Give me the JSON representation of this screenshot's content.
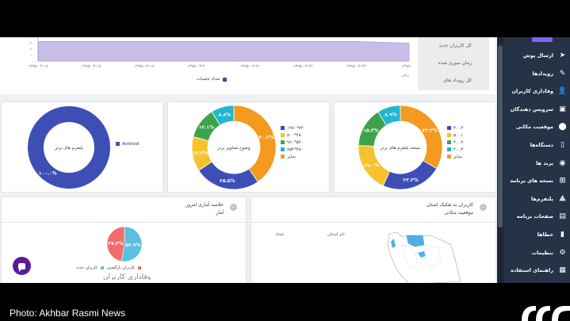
{
  "sidebar": {
    "items": [
      {
        "label": "ارسال پوش",
        "icon": "send-icon",
        "glyph": "➤"
      },
      {
        "label": "رویدادها",
        "icon": "magic-wand-icon",
        "glyph": "✎"
      },
      {
        "label": "وفاداری کاربران",
        "icon": "user-icon",
        "glyph": "👤"
      },
      {
        "label": "سرویس دهندگان",
        "icon": "server-icon",
        "glyph": "▣"
      },
      {
        "label": "موقعیت مکانی",
        "icon": "location-pin-icon",
        "glyph": "⬤"
      },
      {
        "label": "دستگاه‌ها",
        "icon": "phone-icon",
        "glyph": "▯"
      },
      {
        "label": "برند ها",
        "icon": "brand-icon",
        "glyph": "◉"
      },
      {
        "label": "نسخه های برنامه",
        "icon": "versions-icon",
        "glyph": "⊞"
      },
      {
        "label": "پلتفرم‌ها",
        "icon": "platforms-icon",
        "glyph": "⟁"
      },
      {
        "label": "صفحات برنامه",
        "icon": "pages-icon",
        "glyph": "▤"
      },
      {
        "label": "خطاها",
        "icon": "error-icon",
        "glyph": "▮"
      },
      {
        "label": "تنظیمات",
        "icon": "gear-icon",
        "glyph": "⚙"
      },
      {
        "label": "راهنمای استفاده",
        "icon": "guide-icon",
        "glyph": "▦"
      }
    ]
  },
  "top": {
    "x_ticks": [
      "۱۳۹۵-۰۳-۱۷",
      "۱۳۹۵-۰۳-۱۸",
      "۱۳۹۵-۰۳-۱۹",
      "۱۳۹۵-۰۳-۲۰",
      "۱۳۹۵-۰۳-۲۱",
      "۱۳۹۵-۰۳-۲۲",
      "۱۳۹۵-۰۳-۲۳",
      "۱۳۹۵-۰۳-"
    ],
    "y_ticks": [
      "۴۰۰",
      "۳۰۰",
      "۲۰۰",
      "۱۰۰",
      "۰"
    ],
    "y_values": [
      400,
      300,
      200,
      100,
      0
    ],
    "area_values": [
      330,
      330,
      330,
      330,
      330,
      330,
      330,
      300
    ],
    "xlabel_fragment": "زمان",
    "legend": "تعداد جلسات",
    "series_color": "#5c3aa8",
    "kpis": [
      "کل کاربران جدید",
      "زمان سپری شده",
      "کل رویداد های"
    ]
  },
  "donut_platforms": {
    "center": "پلتفرم های برتر",
    "legend": [
      {
        "label": "Android",
        "color": "#3d4fb5"
      }
    ],
    "slices": [
      {
        "value": 100,
        "label": "۱۰۰.۰%",
        "color": "#3d4fb5"
      }
    ]
  },
  "donut_resolutions": {
    "center": "وضوح تصاویر برتر",
    "legend": [
      {
        "label": "۱۲۸۰*۷۲۰",
        "color": "#3d4fb5"
      },
      {
        "label": "۸۰۰*۴۸۰",
        "color": "#f7c22d"
      },
      {
        "label": "۹۶۰*۵۴۰",
        "color": "#3da34a"
      },
      {
        "label": "۸۵۴*۴۸۰",
        "color": "#23b5d3"
      },
      {
        "label": "سایر",
        "color": "#f39a1f"
      }
    ],
    "slices": [
      {
        "value": 40.3,
        "label": "۴۰.۳%",
        "color": "#f39a1f"
      },
      {
        "value": 25.5,
        "label": "۲۵.۵%",
        "color": "#3d4fb5"
      },
      {
        "value": 13.3,
        "label": "۱۳.۳%",
        "color": "#f7c22d"
      },
      {
        "value": 12.1,
        "label": "۱۲.۱%",
        "color": "#3da34a"
      },
      {
        "value": 8.8,
        "label": "۸.۸%",
        "color": "#23b5d3"
      }
    ]
  },
  "donut_versions": {
    "center": "نسخه پلتفرم های برتر",
    "legend": [
      {
        "label": "۴.۰.۴",
        "color": "#3d4fb5"
      },
      {
        "label": "۵.۰.۱",
        "color": "#f7c22d"
      },
      {
        "label": "۴.۰.۲",
        "color": "#3da34a"
      },
      {
        "label": "۴.۰.۳",
        "color": "#23b5d3"
      },
      {
        "label": "سایر",
        "color": "#f39a1f"
      }
    ],
    "slices": [
      {
        "value": 33.3,
        "label": "۳۳.۳%",
        "color": "#f39a1f"
      },
      {
        "value": 23.3,
        "label": "۲۳.۳%",
        "color": "#3d4fb5"
      },
      {
        "value": 19.0,
        "label": "۱۹.۰%",
        "color": "#f7c22d"
      },
      {
        "value": 15.3,
        "label": "۱۵.۳%",
        "color": "#3da34a"
      },
      {
        "value": 8.9,
        "label": "۸.۹%",
        "color": "#23b5d3"
      }
    ]
  },
  "summary": {
    "title": "خلاصه آماری امروز",
    "subtitle": "آمار",
    "legend_new": "کاربران جدید",
    "legend_returning": "کاربران بازگشتی",
    "loyalty_fragment": "وفاداری کاربران",
    "slices": [
      {
        "value": 52.7,
        "label": "۵۲.۷%",
        "color": "#5bbfe0"
      },
      {
        "value": 47.3,
        "label": "۴۷.۳%",
        "color": "#f26c6c"
      }
    ]
  },
  "regions": {
    "title": "کاربران به تفکیک استان",
    "subtitle": "موقعیت مکانی",
    "col_province": "نام استان",
    "col_count": "تعداد"
  },
  "caption": "Photo: Akhbar Rasmi News"
}
